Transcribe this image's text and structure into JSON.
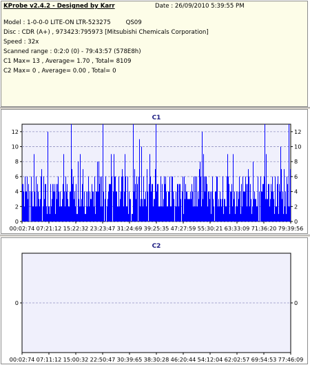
{
  "header": {
    "title": "KProbe v2.4.2 - Designed by Karr",
    "date": "Date : 26/09/2010 5:39:55 PM",
    "lines": [
      "Model : 1-0-0-0 LITE-ON LTR-523275        QS09",
      "Disc : CDR (A+) , 973423:795973 [Mitsubishi Chemicals Corporation]",
      "Speed : 32x",
      "Scanned range : 0:2:0 (0) - 79:43:57 (578E8h)",
      "C1 Max= 13 , Average= 1.70 , Total= 8109",
      "C2 Max= 0 , Average= 0.00 , Total= 0"
    ]
  },
  "colors": {
    "plot_bg": "#f0f0fc",
    "bar": "#0000ff",
    "title": "#1a1a80",
    "grid": "#9090c0"
  },
  "chart_data": [
    {
      "type": "bar",
      "title": "C1",
      "y_ticks": [
        0,
        2,
        4,
        6,
        8,
        10,
        12
      ],
      "ylim": [
        0,
        13
      ],
      "x_tick_labels": [
        "00:02:74",
        "07:21:12",
        "15:22:32",
        "23:23:47",
        "31:24:69",
        "39:25:35",
        "47:27:59",
        "55:30:21",
        "63:33:09",
        "71:36:20",
        "79:39:56"
      ],
      "max": 13,
      "average": 1.7,
      "total": 8109,
      "grid": true,
      "series": [
        {
          "name": "C1"
        }
      ]
    },
    {
      "type": "bar",
      "title": "C2",
      "y_ticks": [
        0
      ],
      "ylim": [
        -1,
        1
      ],
      "x_tick_labels": [
        "00:02:74",
        "07:11:12",
        "15:00:32",
        "22:50:47",
        "30:39:65",
        "38:30:28",
        "46:20:44",
        "54:12:04",
        "62:02:57",
        "69:54:53",
        "77:46:09"
      ],
      "max": 0,
      "average": 0,
      "total": 0,
      "grid": true,
      "series": [
        {
          "name": "C2"
        }
      ]
    }
  ]
}
